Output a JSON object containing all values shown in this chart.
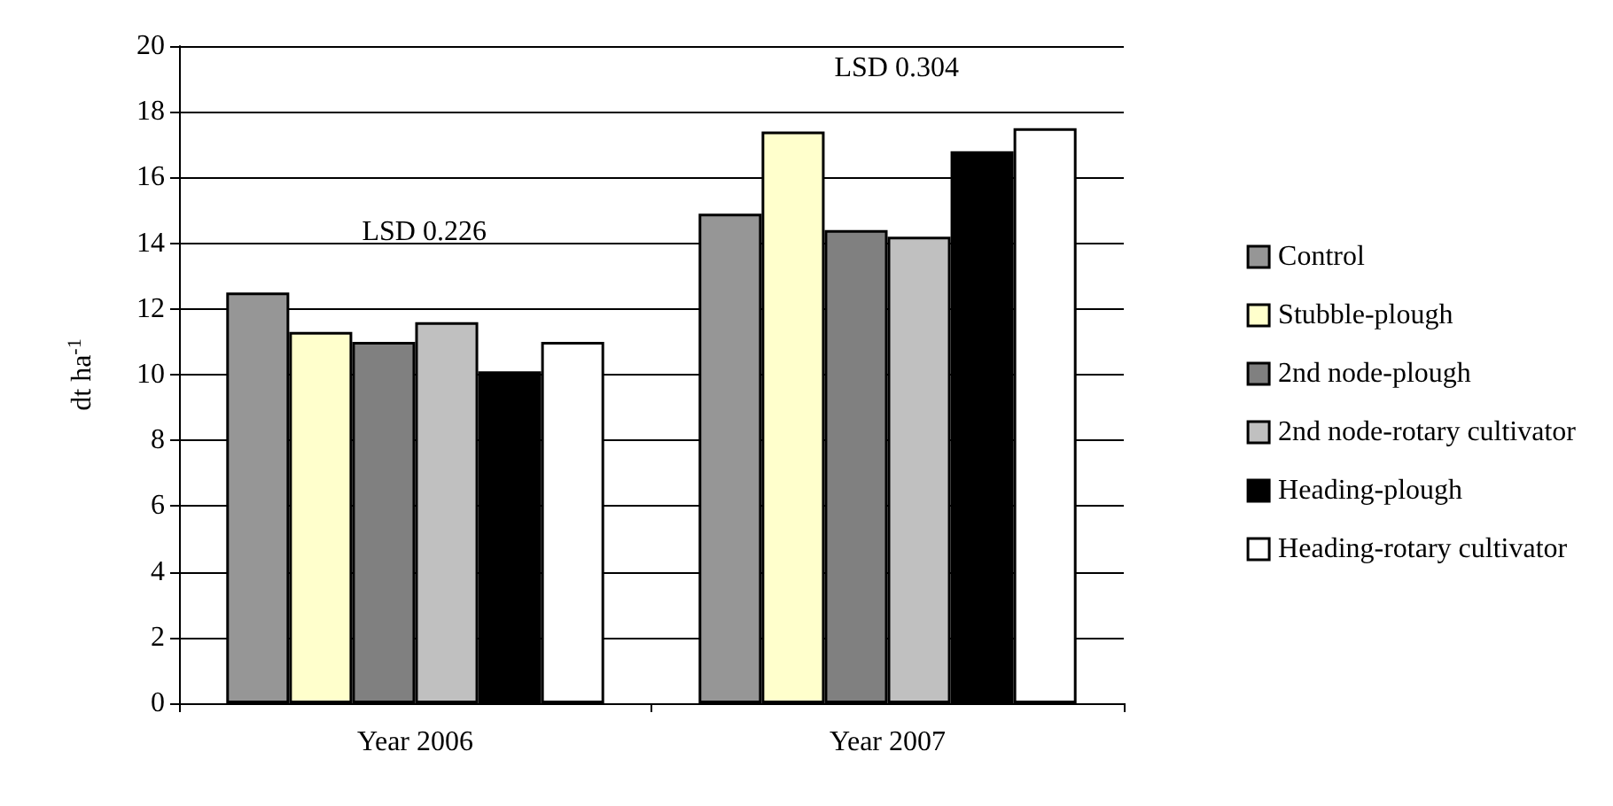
{
  "chart_data": {
    "type": "bar",
    "ylabel": "dt ha$^{-1}$",
    "categories": [
      "Year 2006",
      "Year 2007"
    ],
    "series": [
      {
        "name": "Control",
        "color": "#969696",
        "values": [
          12.5,
          14.9
        ]
      },
      {
        "name": "Stubble-plough",
        "color": "#ffffcc",
        "values": [
          11.3,
          17.4
        ]
      },
      {
        "name": "2nd node-plough",
        "color": "#808080",
        "values": [
          11.0,
          14.4
        ]
      },
      {
        "name": "2nd node-rotary cultivator",
        "color": "#c0c0c0",
        "values": [
          11.6,
          14.2
        ]
      },
      {
        "name": "Heading-plough",
        "color": "#000000",
        "values": [
          10.1,
          16.8
        ]
      },
      {
        "name": "Heading-rotary cultivator",
        "color": "#ffffff",
        "values": [
          11.0,
          17.5
        ]
      }
    ],
    "ylim": [
      0,
      20
    ],
    "yticks": [
      0,
      2,
      4,
      6,
      8,
      10,
      12,
      14,
      16,
      18,
      20
    ],
    "grid": "y",
    "legend": "right",
    "annotations": [
      "LSD 0.226",
      "LSD 0.304"
    ]
  }
}
